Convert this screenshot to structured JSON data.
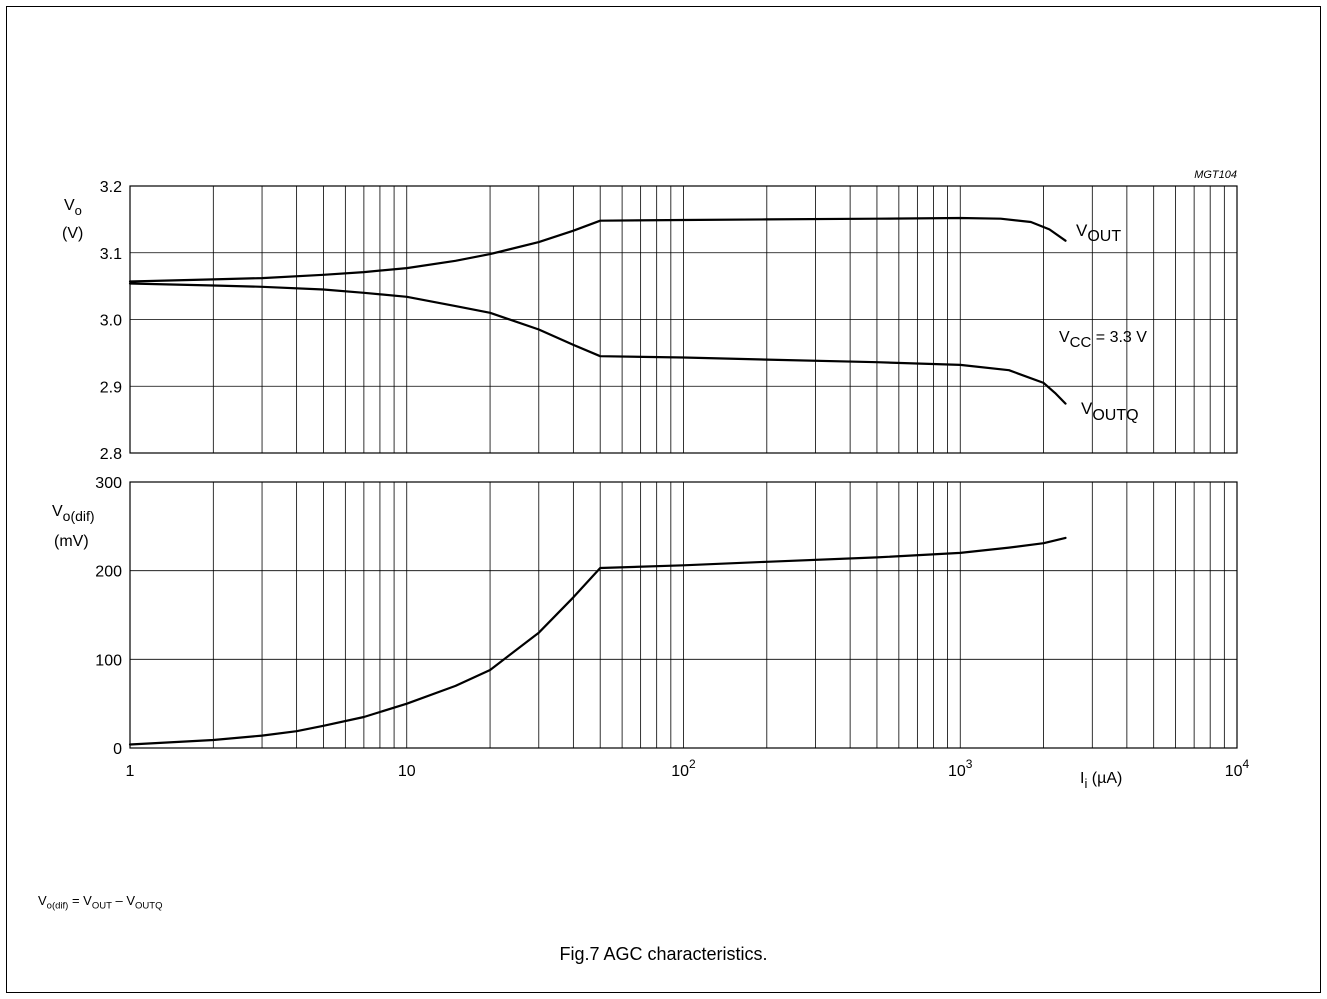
{
  "figure_code": "MGT104",
  "caption": "Fig.7  AGC characteristics.",
  "footnote": {
    "lhs_main": "V",
    "lhs_sub": "o(dif)",
    "eq": " = ",
    "t1_main": "V",
    "t1_sub": "OUT",
    "minus": " – ",
    "t2_main": "V",
    "t2_sub": "OUTQ"
  },
  "chart_data": [
    {
      "type": "line",
      "x_scale": "log",
      "xlim": [
        1,
        10000
      ],
      "ylim": [
        2.8,
        3.2
      ],
      "grid": true,
      "ylabel_main": "V",
      "ylabel_sub": "o",
      "ylabel_unit": "(V)",
      "yticks": [
        "3.2",
        "3.1",
        "3.0",
        "2.9",
        "2.8"
      ],
      "ytick_values": [
        3.2,
        3.1,
        3.0,
        2.9,
        2.8
      ],
      "annotation": {
        "main": "V",
        "sub": "CC",
        "rest": " = 3.3 V"
      },
      "series": [
        {
          "name": "VOUT",
          "label_main": "V",
          "label_sub": "OUT",
          "x": [
            1,
            2,
            3,
            5,
            7,
            10,
            15,
            20,
            30,
            40,
            50,
            100,
            200,
            500,
            1000,
            1400,
            1800,
            2100,
            2400
          ],
          "y": [
            3.057,
            3.06,
            3.062,
            3.067,
            3.071,
            3.077,
            3.088,
            3.098,
            3.116,
            3.133,
            3.148,
            3.149,
            3.15,
            3.151,
            3.152,
            3.151,
            3.146,
            3.135,
            3.118
          ]
        },
        {
          "name": "VOUTQ",
          "label_main": "V",
          "label_sub": "OUTQ",
          "x": [
            1,
            2,
            3,
            5,
            7,
            10,
            15,
            20,
            30,
            40,
            50,
            100,
            200,
            500,
            1000,
            1500,
            2000,
            2200,
            2400
          ],
          "y": [
            3.054,
            3.051,
            3.049,
            3.045,
            3.04,
            3.034,
            3.02,
            3.01,
            2.985,
            2.962,
            2.945,
            2.943,
            2.94,
            2.936,
            2.932,
            2.924,
            2.905,
            2.89,
            2.874
          ]
        }
      ]
    },
    {
      "type": "line",
      "x_scale": "log",
      "xlim": [
        1,
        10000
      ],
      "ylim": [
        0,
        300
      ],
      "grid": true,
      "ylabel_main": "V",
      "ylabel_sub": "o(dif)",
      "ylabel_unit": "(mV)",
      "yticks": [
        "300",
        "200",
        "100",
        "0"
      ],
      "ytick_values": [
        300,
        200,
        100,
        0
      ],
      "xlabel_main": "I",
      "xlabel_sub": "i",
      "xlabel_unit": " (µA)",
      "xticks": [
        {
          "value": 1,
          "base": "1",
          "exp": ""
        },
        {
          "value": 10,
          "base": "10",
          "exp": ""
        },
        {
          "value": 100,
          "base": "10",
          "exp": "2"
        },
        {
          "value": 1000,
          "base": "10",
          "exp": "3"
        },
        {
          "value": 10000,
          "base": "10",
          "exp": "4"
        }
      ],
      "series": [
        {
          "name": "",
          "x": [
            1,
            2,
            3,
            4,
            5,
            7,
            10,
            15,
            20,
            30,
            40,
            50,
            100,
            200,
            500,
            1000,
            1500,
            2000,
            2400
          ],
          "y": [
            4,
            9,
            14,
            19,
            25,
            35,
            50,
            70,
            88,
            130,
            170,
            203,
            206,
            210,
            215,
            220,
            226,
            231,
            237
          ]
        }
      ]
    }
  ]
}
